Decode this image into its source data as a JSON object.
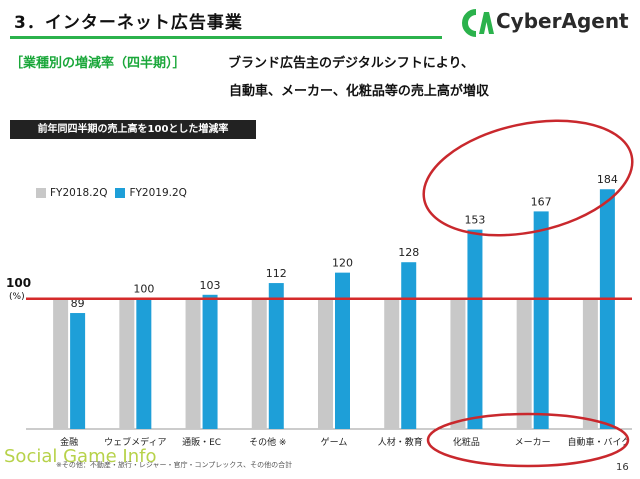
{
  "slide": {
    "title": "3．インターネット広告事業",
    "page_number": "16",
    "footnote": "※その他：不動産・旅行・レジャー・官庁・コンプレックス、その他の合計",
    "watermark": "Social Game Info"
  },
  "logo": {
    "text": "CyberAgent",
    "accent": "#2bb24c"
  },
  "subtitle": {
    "bracket": "［業種別の増減率（四半期）］",
    "line1": "ブランド広告主のデジタルシフトにより、",
    "line2": "自動車、メーカー、化粧品等の売上高が増収"
  },
  "chart_data": {
    "type": "bar",
    "title": "前年同四半期の売上高を100とした増減率",
    "categories": [
      "金融",
      "ウェブメディア",
      "通販・EC",
      "その他 ※",
      "ゲーム",
      "人材・教育",
      "化粧品",
      "メーカー",
      "自動車・バイク"
    ],
    "series": [
      {
        "name": "FY2018.2Q",
        "values": [
          100,
          100,
          100,
          100,
          100,
          100,
          100,
          100,
          100
        ],
        "color": "#c8c8c8"
      },
      {
        "name": "FY2019.2Q",
        "values": [
          89,
          100,
          103,
          112,
          120,
          128,
          153,
          167,
          184
        ],
        "color": "#1e9fd8"
      }
    ],
    "value_labels": [
      "89",
      "100",
      "103",
      "112",
      "120",
      "128",
      "153",
      "167",
      "184"
    ],
    "reference_line": {
      "value": 100,
      "label": "100",
      "unit": "(%)",
      "color": "#d42a2a"
    },
    "ylim": [
      0,
      190
    ],
    "legend_position": "top-left",
    "highlight_color": "#c9282d"
  }
}
